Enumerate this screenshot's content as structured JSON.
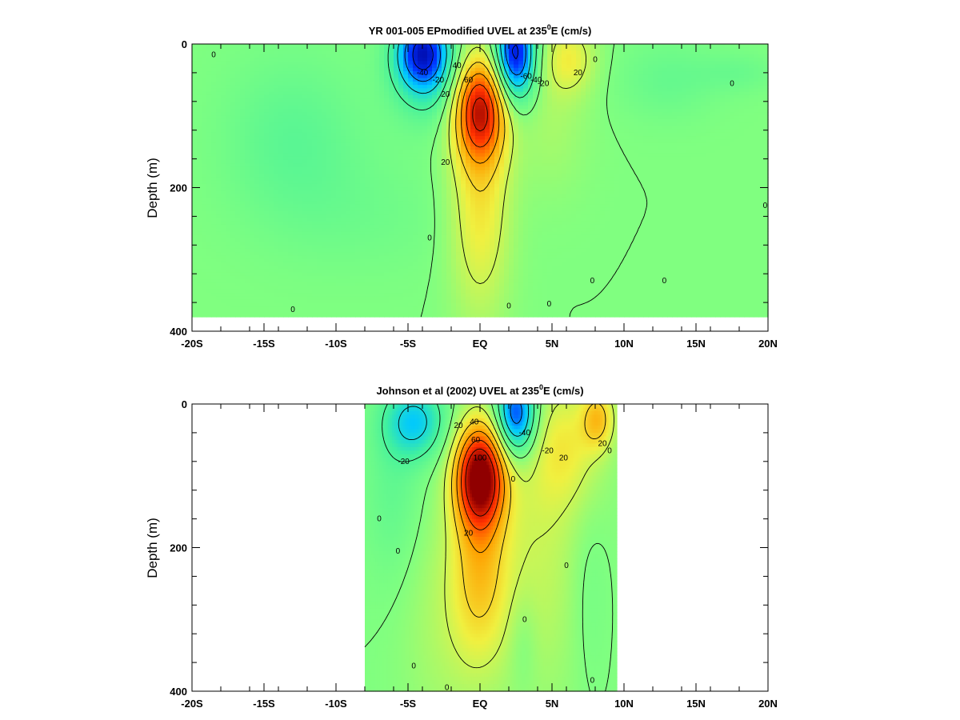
{
  "chart_data": [
    {
      "type": "heatmap",
      "title_main": "YR 001-005 EPmodified UVEL at 235",
      "title_sup": "0",
      "title_end": "E (cm/s)",
      "xlabel": "",
      "ylabel": "Depth (m)",
      "xlim": [
        -20,
        20
      ],
      "ylim": [
        400,
        0
      ],
      "x_ticks": [
        {
          "v": -20,
          "label": "-20S"
        },
        {
          "v": -15,
          "label": "-15S"
        },
        {
          "v": -10,
          "label": "-10S"
        },
        {
          "v": -5,
          "label": "-5S"
        },
        {
          "v": 0,
          "label": "EQ"
        },
        {
          "v": 5,
          "label": "5N"
        },
        {
          "v": 10,
          "label": "10N"
        },
        {
          "v": 15,
          "label": "15N"
        },
        {
          "v": 20,
          "label": "20N"
        }
      ],
      "y_ticks": [
        {
          "v": 0,
          "label": "0"
        },
        {
          "v": 200,
          "label": "200"
        },
        {
          "v": 400,
          "label": "400"
        }
      ],
      "data_extent": {
        "lat": [
          -20,
          20
        ],
        "depth": [
          0,
          380
        ]
      },
      "colormap": [
        "#000090",
        "#0030ff",
        "#00c8ff",
        "#40f0a0",
        "#80ff80",
        "#f0f040",
        "#ffa000",
        "#ff3000",
        "#900000"
      ],
      "value_range": [
        -100,
        120
      ],
      "features": [
        {
          "lat": -4.0,
          "depth": 10,
          "amp": -75,
          "slat": 1.3,
          "sdep": 35
        },
        {
          "lat": -3.5,
          "depth": 50,
          "amp": -25,
          "slat": 1.8,
          "sdep": 45
        },
        {
          "lat": -13.0,
          "depth": 130,
          "amp": -14,
          "slat": 3.5,
          "sdep": 80
        },
        {
          "lat": -8.0,
          "depth": 240,
          "amp": -6,
          "slat": 5.0,
          "sdep": 60
        },
        {
          "lat": 0.0,
          "depth": 90,
          "amp": 95,
          "slat": 1.25,
          "sdep": 50
        },
        {
          "lat": 0.0,
          "depth": 220,
          "amp": 35,
          "slat": 1.5,
          "sdep": 110
        },
        {
          "lat": 2.4,
          "depth": 15,
          "amp": -90,
          "slat": 1.0,
          "sdep": 45
        },
        {
          "lat": 6.2,
          "depth": 20,
          "amp": 28,
          "slat": 1.3,
          "sdep": 35
        },
        {
          "lat": 5.0,
          "depth": 110,
          "amp": 10,
          "slat": 1.8,
          "sdep": 70
        },
        {
          "lat": 13.0,
          "depth": 50,
          "amp": -10,
          "slat": 2.5,
          "sdep": 40
        },
        {
          "lat": 18.0,
          "depth": 40,
          "amp": -8,
          "slat": 2.0,
          "sdep": 20
        }
      ],
      "contour_labels": [
        {
          "lat": -4.0,
          "depth": 40,
          "text": "-40"
        },
        {
          "lat": -2.9,
          "depth": 50,
          "text": "-20"
        },
        {
          "lat": -1.6,
          "depth": 30,
          "text": "40"
        },
        {
          "lat": -0.8,
          "depth": 50,
          "text": "60"
        },
        {
          "lat": -2.4,
          "depth": 70,
          "text": "20"
        },
        {
          "lat": -2.4,
          "depth": 165,
          "text": "20"
        },
        {
          "lat": 3.2,
          "depth": 45,
          "text": "-60"
        },
        {
          "lat": 3.9,
          "depth": 50,
          "text": "-40"
        },
        {
          "lat": 4.4,
          "depth": 55,
          "text": "-20"
        },
        {
          "lat": 6.8,
          "depth": 40,
          "text": "20"
        },
        {
          "lat": -18.5,
          "depth": 15,
          "text": "0"
        },
        {
          "lat": -3.5,
          "depth": 270,
          "text": "0"
        },
        {
          "lat": -13.0,
          "depth": 370,
          "text": "0"
        },
        {
          "lat": 2.0,
          "depth": 365,
          "text": "0"
        },
        {
          "lat": 4.8,
          "depth": 362,
          "text": "0"
        },
        {
          "lat": 7.8,
          "depth": 330,
          "text": "0"
        },
        {
          "lat": 8.0,
          "depth": 22,
          "text": "0"
        },
        {
          "lat": 12.8,
          "depth": 330,
          "text": "0"
        },
        {
          "lat": 17.5,
          "depth": 55,
          "text": "0"
        },
        {
          "lat": 19.8,
          "depth": 225,
          "text": "0"
        }
      ]
    },
    {
      "type": "heatmap",
      "title_main": "Johnson et al (2002) UVEL at 235",
      "title_sup": "0",
      "title_end": "E (cm/s)",
      "xlabel": "",
      "ylabel": "Depth (m)",
      "xlim": [
        -20,
        20
      ],
      "ylim": [
        400,
        0
      ],
      "x_ticks": [
        {
          "v": -20,
          "label": "-20S"
        },
        {
          "v": -15,
          "label": "-15S"
        },
        {
          "v": -10,
          "label": "-10S"
        },
        {
          "v": -5,
          "label": "-5S"
        },
        {
          "v": 0,
          "label": "EQ"
        },
        {
          "v": 5,
          "label": "5N"
        },
        {
          "v": 10,
          "label": "10N"
        },
        {
          "v": 15,
          "label": "15N"
        },
        {
          "v": 20,
          "label": "20N"
        }
      ],
      "y_ticks": [
        {
          "v": 0,
          "label": "0"
        },
        {
          "v": 200,
          "label": "200"
        },
        {
          "v": 400,
          "label": "400"
        }
      ],
      "data_extent": {
        "lat": [
          -8,
          9.5
        ],
        "depth": [
          0,
          400
        ]
      },
      "colormap": [
        "#000090",
        "#0030ff",
        "#00c8ff",
        "#40f0a0",
        "#80ff80",
        "#f0f040",
        "#ffa000",
        "#ff3000",
        "#900000"
      ],
      "value_range": [
        -100,
        120
      ],
      "features": [
        {
          "lat": -4.5,
          "depth": 25,
          "amp": -45,
          "slat": 1.5,
          "sdep": 35
        },
        {
          "lat": -6.0,
          "depth": 120,
          "amp": -12,
          "slat": 1.5,
          "sdep": 90
        },
        {
          "lat": 0.0,
          "depth": 100,
          "amp": 120,
          "slat": 1.2,
          "sdep": 50
        },
        {
          "lat": 0.0,
          "depth": 230,
          "amp": 40,
          "slat": 1.4,
          "sdep": 90
        },
        {
          "lat": 2.5,
          "depth": 15,
          "amp": -80,
          "slat": 1.0,
          "sdep": 40
        },
        {
          "lat": 6.0,
          "depth": 60,
          "amp": 25,
          "slat": 1.8,
          "sdep": 60
        },
        {
          "lat": 8.2,
          "depth": 20,
          "amp": 40,
          "slat": 0.8,
          "sdep": 30
        },
        {
          "lat": 4.0,
          "depth": 200,
          "amp": 18,
          "slat": 2.5,
          "sdep": 150
        },
        {
          "lat": -2.5,
          "depth": 300,
          "amp": 12,
          "slat": 2.0,
          "sdep": 120
        },
        {
          "lat": 3.0,
          "depth": 330,
          "amp": -10,
          "slat": 0.7,
          "sdep": 50
        },
        {
          "lat": 7.5,
          "depth": 250,
          "amp": -8,
          "slat": 1.0,
          "sdep": 100
        }
      ],
      "contour_labels": [
        {
          "lat": -5.3,
          "depth": 80,
          "text": "-20"
        },
        {
          "lat": -1.5,
          "depth": 30,
          "text": "20"
        },
        {
          "lat": -0.4,
          "depth": 25,
          "text": "40"
        },
        {
          "lat": -0.3,
          "depth": 50,
          "text": "60"
        },
        {
          "lat": 0.0,
          "depth": 75,
          "text": "100"
        },
        {
          "lat": -0.8,
          "depth": 180,
          "text": "20"
        },
        {
          "lat": 3.1,
          "depth": 40,
          "text": "-40"
        },
        {
          "lat": 4.7,
          "depth": 65,
          "text": "-20"
        },
        {
          "lat": 5.8,
          "depth": 75,
          "text": "20"
        },
        {
          "lat": 8.5,
          "depth": 55,
          "text": "20"
        },
        {
          "lat": 9.0,
          "depth": 65,
          "text": "0"
        },
        {
          "lat": -7.0,
          "depth": 160,
          "text": "0"
        },
        {
          "lat": -5.7,
          "depth": 205,
          "text": "0"
        },
        {
          "lat": 2.3,
          "depth": 105,
          "text": "0"
        },
        {
          "lat": 6.0,
          "depth": 225,
          "text": "0"
        },
        {
          "lat": 3.1,
          "depth": 300,
          "text": "0"
        },
        {
          "lat": -4.6,
          "depth": 365,
          "text": "0"
        },
        {
          "lat": 7.8,
          "depth": 385,
          "text": "0"
        },
        {
          "lat": -2.3,
          "depth": 395,
          "text": "0"
        }
      ]
    }
  ]
}
